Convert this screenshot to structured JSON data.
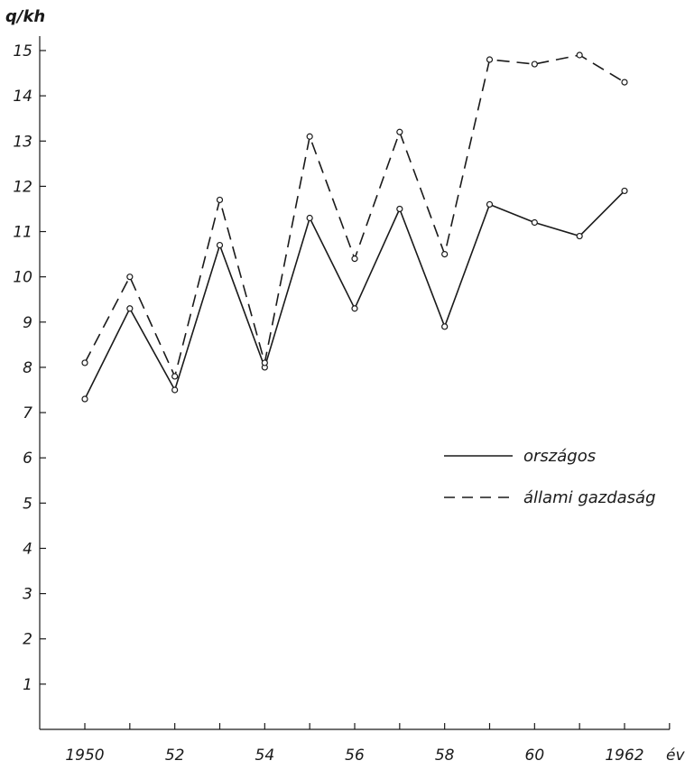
{
  "chart_data": {
    "type": "line",
    "title": "",
    "ylabel": "q/kh",
    "xlabel": "év",
    "x": [
      1950,
      1951,
      1952,
      1953,
      1954,
      1955,
      1956,
      1957,
      1958,
      1959,
      1960,
      1961,
      1962
    ],
    "xtick_labels": [
      {
        "x": 1950,
        "label": "1950"
      },
      {
        "x": 1952,
        "label": "52"
      },
      {
        "x": 1954,
        "label": "54"
      },
      {
        "x": 1956,
        "label": "56"
      },
      {
        "x": 1958,
        "label": "58"
      },
      {
        "x": 1960,
        "label": "60"
      },
      {
        "x": 1962,
        "label": "1962"
      }
    ],
    "yticks": [
      1,
      2,
      3,
      4,
      5,
      6,
      7,
      8,
      9,
      10,
      11,
      12,
      13,
      14,
      15
    ],
    "xlim": [
      1949,
      1963
    ],
    "ylim": [
      0,
      15
    ],
    "grid": false,
    "legend_position": "right",
    "series": [
      {
        "name": "országos",
        "line_style": "solid",
        "color": "#1a1a1a",
        "values": [
          7.3,
          9.3,
          7.5,
          10.7,
          8.0,
          11.3,
          9.3,
          11.5,
          8.9,
          11.6,
          11.2,
          10.9,
          11.9
        ]
      },
      {
        "name": "állami gazdaság",
        "line_style": "dashed",
        "color": "#1a1a1a",
        "values": [
          8.1,
          10.0,
          7.8,
          11.7,
          8.1,
          13.1,
          10.4,
          13.2,
          10.5,
          14.8,
          14.7,
          14.9,
          14.3
        ]
      }
    ]
  }
}
